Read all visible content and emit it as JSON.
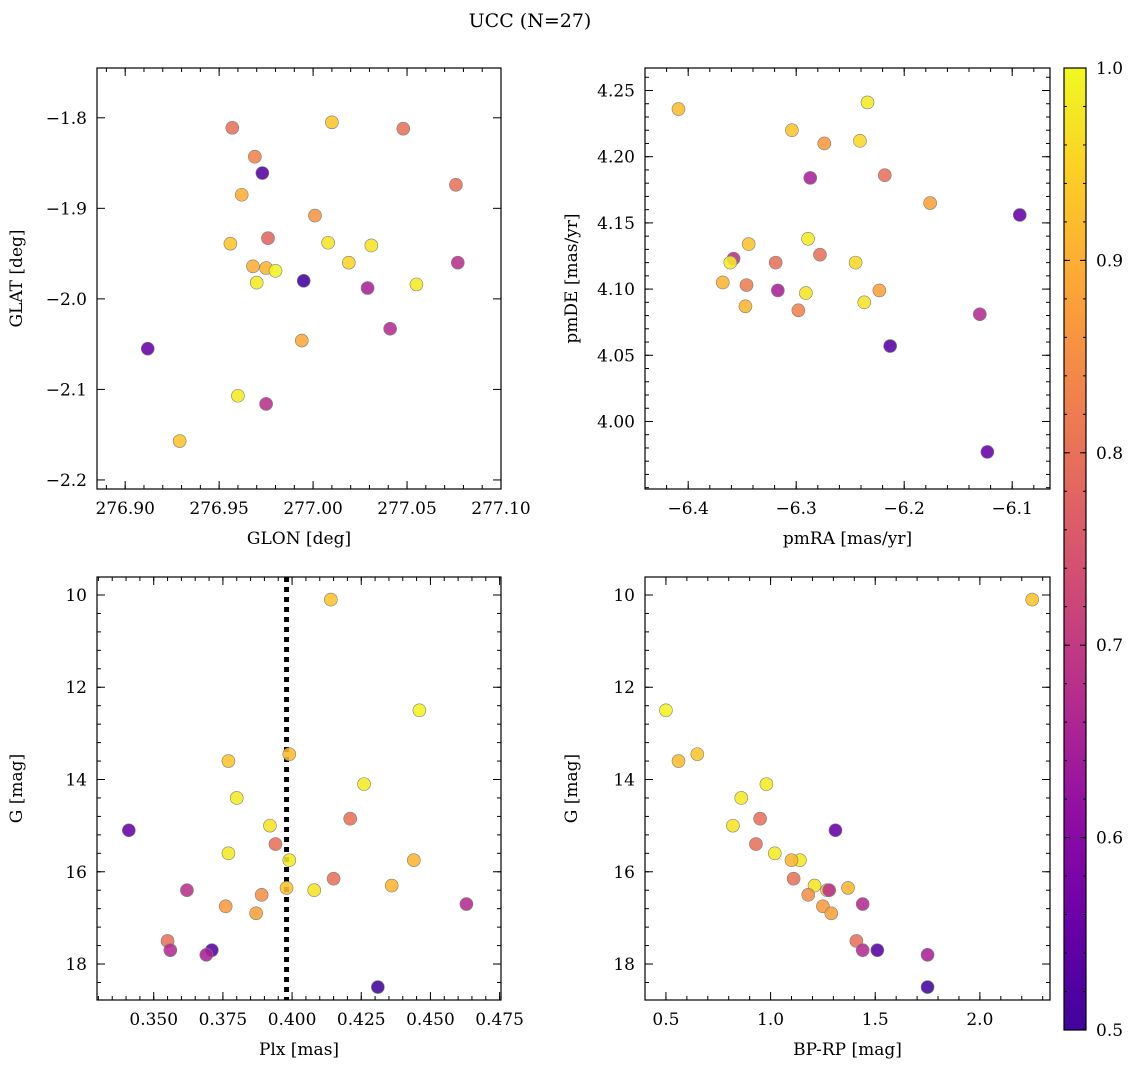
{
  "title": "UCC (N=27)",
  "colorbar": {
    "min": 0.5,
    "max": 1.0,
    "colormap": "plasma",
    "ticks": [
      0.5,
      0.6,
      0.7,
      0.8,
      0.9,
      1.0
    ],
    "tick_labels": [
      "0.5",
      "0.6",
      "0.7",
      "0.8",
      "0.9",
      "1.0"
    ]
  },
  "chart_data": [
    {
      "type": "scatter",
      "xlabel": "GLON [deg]",
      "ylabel": "GLAT [deg]",
      "xlim": [
        276.885,
        277.1
      ],
      "ylim": [
        -2.21,
        -1.745
      ],
      "xticks": [
        276.9,
        276.95,
        277.0,
        277.05,
        277.1
      ],
      "xtick_labels": [
        "276.90",
        "276.95",
        "277.00",
        "277.05",
        "277.10"
      ],
      "yticks": [
        -1.8,
        -1.9,
        -2.0,
        -2.1,
        -2.2
      ],
      "ytick_labels": [
        "−1.8",
        "−1.9",
        "−2.0",
        "−2.1",
        "−2.2"
      ],
      "x": [
        276.957,
        277.01,
        277.048,
        276.969,
        276.973,
        277.076,
        276.962,
        277.001,
        276.976,
        277.008,
        277.031,
        276.956,
        277.019,
        276.968,
        276.975,
        276.98,
        276.97,
        276.995,
        277.055,
        277.077,
        277.029,
        277.041,
        276.994,
        276.912,
        276.96,
        276.975,
        276.929
      ],
      "y": [
        -1.811,
        -1.805,
        -1.812,
        -1.843,
        -1.861,
        -1.874,
        -1.885,
        -1.908,
        -1.933,
        -1.938,
        -1.941,
        -1.939,
        -1.96,
        -1.964,
        -1.966,
        -1.969,
        -1.982,
        -1.98,
        -1.984,
        -1.96,
        -1.988,
        -2.033,
        -2.046,
        -2.055,
        -2.107,
        -2.116,
        -2.157
      ],
      "color": [
        0.8,
        0.93,
        0.8,
        0.83,
        0.53,
        0.8,
        0.9,
        0.86,
        0.78,
        0.97,
        0.97,
        0.93,
        0.95,
        0.9,
        0.91,
        0.99,
        0.98,
        0.5,
        0.98,
        0.68,
        0.65,
        0.67,
        0.89,
        0.55,
        0.98,
        0.68,
        0.93
      ]
    },
    {
      "type": "scatter",
      "xlabel": "pmRA [mas/yr]",
      "ylabel": "pmDE [mas/yr]",
      "xlim": [
        -6.44,
        -6.065
      ],
      "ylim": [
        3.949,
        4.267
      ],
      "xticks": [
        -6.4,
        -6.3,
        -6.2,
        -6.1
      ],
      "xtick_labels": [
        "−6.4",
        "−6.3",
        "−6.2",
        "−6.1"
      ],
      "yticks": [
        4.0,
        4.05,
        4.1,
        4.15,
        4.2,
        4.25
      ],
      "ytick_labels": [
        "4.00",
        "4.05",
        "4.10",
        "4.15",
        "4.20",
        "4.25"
      ],
      "x": [
        -6.409,
        -6.234,
        -6.304,
        -6.241,
        -6.274,
        -6.218,
        -6.287,
        -6.176,
        -6.093,
        -6.289,
        -6.344,
        -6.278,
        -6.245,
        -6.358,
        -6.319,
        -6.361,
        -6.368,
        -6.346,
        -6.317,
        -6.291,
        -6.223,
        -6.237,
        -6.347,
        -6.298,
        -6.13,
        -6.213,
        -6.123
      ],
      "y": [
        4.236,
        4.241,
        4.22,
        4.212,
        4.21,
        4.186,
        4.184,
        4.165,
        4.156,
        4.138,
        4.134,
        4.126,
        4.12,
        4.123,
        4.12,
        4.12,
        4.105,
        4.103,
        4.099,
        4.097,
        4.099,
        4.09,
        4.087,
        4.084,
        4.081,
        4.057,
        3.977
      ],
      "color": [
        0.92,
        0.98,
        0.93,
        0.96,
        0.87,
        0.8,
        0.65,
        0.88,
        0.55,
        0.98,
        0.93,
        0.8,
        0.96,
        0.68,
        0.8,
        0.98,
        0.91,
        0.82,
        0.65,
        0.97,
        0.88,
        0.97,
        0.91,
        0.83,
        0.67,
        0.53,
        0.55
      ]
    },
    {
      "type": "scatter",
      "xlabel": "Plx [mas]",
      "ylabel": "G [mag]",
      "xlim": [
        0.3295,
        0.4755
      ],
      "ylim": [
        18.78,
        9.61
      ],
      "y_inverted": true,
      "vline_x": 0.398,
      "xticks": [
        0.35,
        0.375,
        0.4,
        0.425,
        0.45,
        0.475
      ],
      "xtick_labels": [
        "0.350",
        "0.375",
        "0.400",
        "0.425",
        "0.450",
        "0.475"
      ],
      "yticks": [
        10,
        12,
        14,
        16,
        18
      ],
      "ytick_labels": [
        "10",
        "12",
        "14",
        "16",
        "18"
      ],
      "x": [
        0.414,
        0.446,
        0.399,
        0.377,
        0.426,
        0.38,
        0.421,
        0.392,
        0.341,
        0.394,
        0.377,
        0.399,
        0.444,
        0.415,
        0.436,
        0.362,
        0.408,
        0.398,
        0.389,
        0.376,
        0.387,
        0.463,
        0.355,
        0.356,
        0.371,
        0.369,
        0.431
      ],
      "y": [
        10.1,
        12.5,
        13.45,
        13.6,
        14.1,
        14.4,
        14.85,
        15.0,
        15.1,
        15.4,
        15.6,
        15.75,
        15.75,
        16.15,
        16.3,
        16.4,
        16.4,
        16.35,
        16.5,
        16.75,
        16.9,
        16.7,
        17.5,
        17.7,
        17.7,
        17.8,
        18.5
      ],
      "color": [
        0.93,
        0.99,
        0.92,
        0.93,
        0.98,
        0.98,
        0.8,
        0.97,
        0.55,
        0.8,
        0.98,
        0.98,
        0.91,
        0.8,
        0.91,
        0.68,
        0.97,
        0.93,
        0.85,
        0.87,
        0.88,
        0.67,
        0.8,
        0.67,
        0.53,
        0.65,
        0.5
      ]
    },
    {
      "type": "scatter",
      "xlabel": "BP-RP [mag]",
      "ylabel": "G [mag]",
      "xlim": [
        0.4,
        2.335
      ],
      "ylim": [
        18.78,
        9.61
      ],
      "y_inverted": true,
      "xticks": [
        0.5,
        1.0,
        1.5,
        2.0
      ],
      "xtick_labels": [
        "0.5",
        "1.0",
        "1.5",
        "2.0"
      ],
      "yticks": [
        10,
        12,
        14,
        16,
        18
      ],
      "ytick_labels": [
        "10",
        "12",
        "14",
        "16",
        "18"
      ],
      "x": [
        2.25,
        0.5,
        0.56,
        0.65,
        0.98,
        0.86,
        0.95,
        0.82,
        1.31,
        0.93,
        1.02,
        1.14,
        1.1,
        1.11,
        1.37,
        1.27,
        1.21,
        1.28,
        1.18,
        1.25,
        1.29,
        1.44,
        1.41,
        1.44,
        1.51,
        1.75,
        1.75
      ],
      "y": [
        10.1,
        12.5,
        13.6,
        13.45,
        14.1,
        14.4,
        14.85,
        15.0,
        15.1,
        15.4,
        15.6,
        15.75,
        15.75,
        16.15,
        16.35,
        16.4,
        16.3,
        16.4,
        16.5,
        16.75,
        16.9,
        16.7,
        17.5,
        17.7,
        17.7,
        17.8,
        18.5
      ],
      "color": [
        0.93,
        0.99,
        0.92,
        0.93,
        0.98,
        0.98,
        0.8,
        0.97,
        0.55,
        0.8,
        0.98,
        0.98,
        0.91,
        0.8,
        0.91,
        0.93,
        0.97,
        0.68,
        0.85,
        0.87,
        0.88,
        0.67,
        0.8,
        0.67,
        0.53,
        0.65,
        0.5
      ]
    }
  ]
}
